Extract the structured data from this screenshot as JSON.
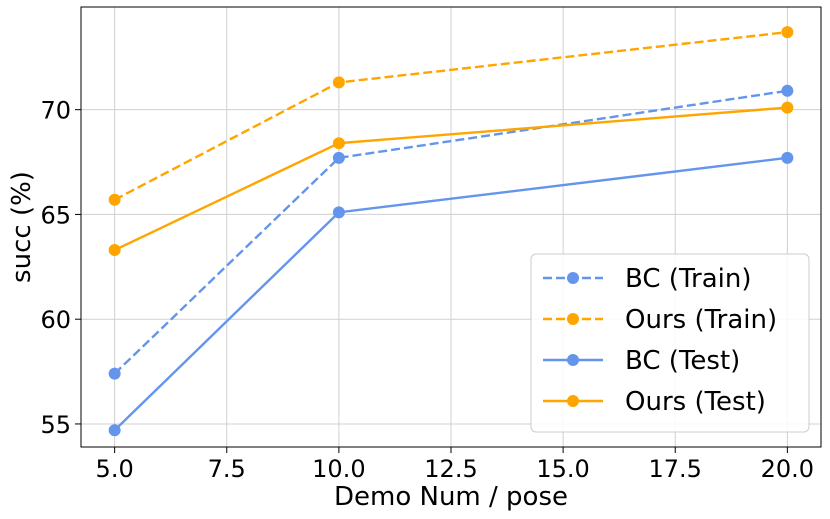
{
  "chart_data": {
    "type": "line",
    "title": "",
    "xlabel": "Demo Num / pose",
    "ylabel": "succ (%)",
    "x": [
      5.0,
      10.0,
      20.0
    ],
    "xlim": [
      4.25,
      20.75
    ],
    "ylim": [
      53.9,
      74.9
    ],
    "xticks": [
      5.0,
      7.5,
      10.0,
      12.5,
      15.0,
      17.5,
      20.0
    ],
    "xtick_labels": [
      "5.0",
      "7.5",
      "10.0",
      "12.5",
      "15.0",
      "17.5",
      "20.0"
    ],
    "yticks": [
      55,
      60,
      65,
      70
    ],
    "ytick_labels": [
      "55",
      "60",
      "65",
      "70"
    ],
    "grid": true,
    "legend_position": "bottom-right",
    "series": [
      {
        "name": "BC (Train)",
        "values": [
          57.4,
          67.7,
          70.9
        ],
        "color": "#6495ed",
        "style": "dashed"
      },
      {
        "name": "Ours (Train)",
        "values": [
          65.7,
          71.3,
          73.7
        ],
        "color": "#ffa500",
        "style": "dashed"
      },
      {
        "name": "BC (Test)",
        "values": [
          54.7,
          65.1,
          67.7
        ],
        "color": "#6495ed",
        "style": "solid"
      },
      {
        "name": "Ours (Test)",
        "values": [
          63.3,
          68.4,
          70.1
        ],
        "color": "#ffa500",
        "style": "solid"
      }
    ]
  }
}
